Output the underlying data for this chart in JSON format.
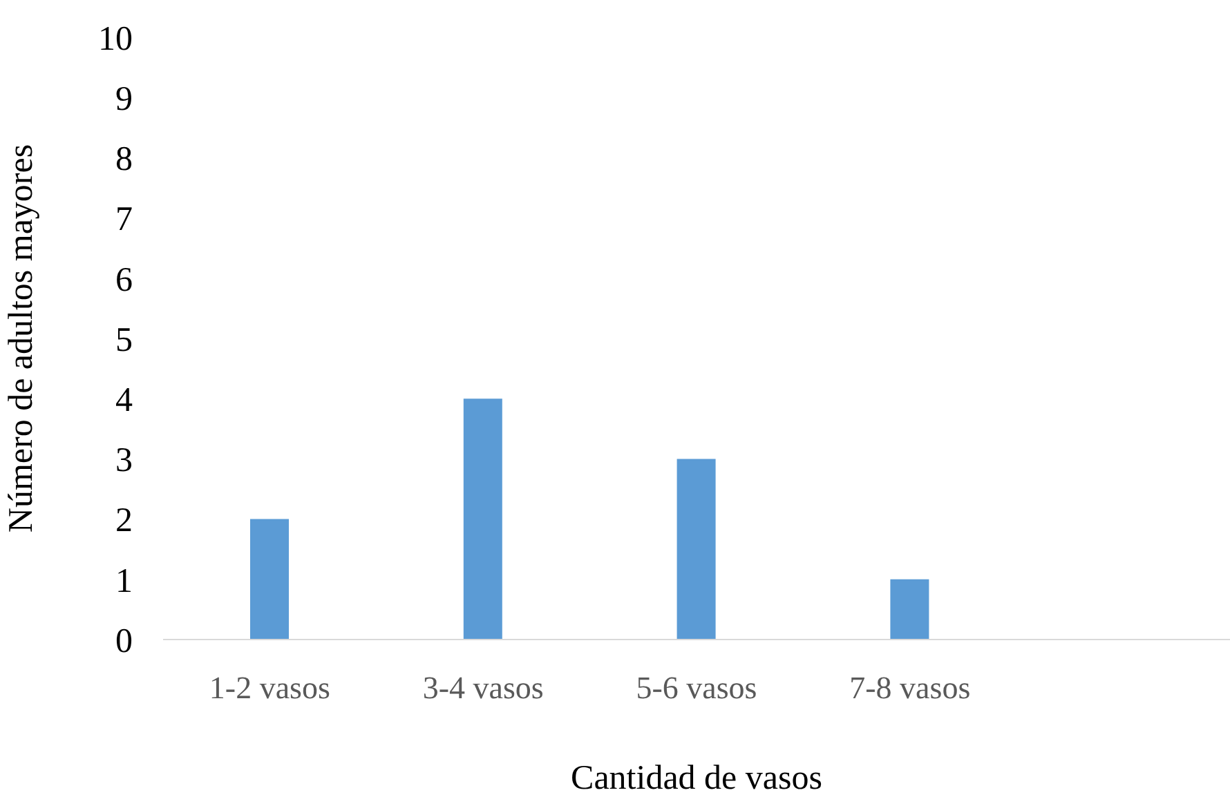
{
  "chart_data": {
    "type": "bar",
    "xlabel": "Cantidad de vasos",
    "ylabel": "Número de adultos mayores",
    "categories": [
      "1-2 vasos",
      "3-4 vasos",
      "5-6 vasos",
      "7-8 vasos",
      null
    ],
    "values": [
      2,
      4,
      3,
      1,
      null
    ],
    "color": "#5b9bd5",
    "ylim": [
      0,
      10
    ],
    "yticks": [
      0,
      1,
      2,
      3,
      4,
      5,
      6,
      7,
      8,
      9,
      10
    ],
    "grid": false,
    "legend": false
  }
}
